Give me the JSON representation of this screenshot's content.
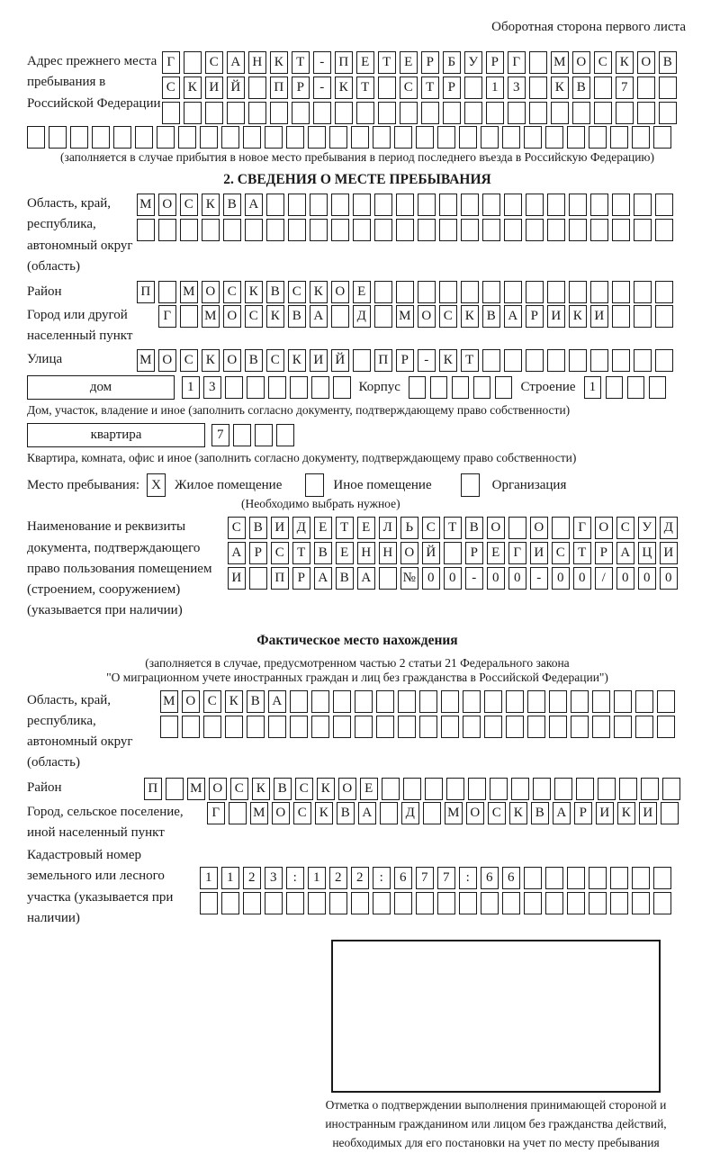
{
  "page_header": "Оборотная сторона первого листа",
  "prev_address": {
    "label": "Адрес прежнего места пребывания в Российской Федерации",
    "rows": [
      {
        "cells": 24,
        "text": "Г САНКТ-ПЕТЕРБУРГ МОСКОВ"
      },
      {
        "cells": 24,
        "text": "СКИЙ ПР-КТ СТР 13 КВ 7"
      },
      {
        "cells": 24,
        "text": ""
      }
    ],
    "full_row": {
      "cells": 30,
      "text": ""
    },
    "note": "(заполняется в случае прибытия в новое место пребывания в период последнего въезда в Российскую Федерацию)"
  },
  "section2": {
    "title": "2. СВЕДЕНИЯ О МЕСТЕ ПРЕБЫВАНИЯ",
    "oblast": {
      "label": "Область, край, республика, автономный округ (область)",
      "rows": [
        {
          "cells": 25,
          "text": "МОСКВА"
        },
        {
          "cells": 25,
          "text": ""
        }
      ]
    },
    "raion": {
      "label": "Район",
      "row": {
        "cells": 25,
        "text": "П МОСКВСКОЕ"
      }
    },
    "gorod": {
      "label": "Город или другой населенный пункт",
      "row": {
        "cells": 24,
        "text": "Г МОСКВА Д МОСКВАРИКИ"
      }
    },
    "ulitsa": {
      "label": "Улица",
      "row": {
        "cells": 25,
        "text": "МОСКОВСКИЙ ПР-КТ"
      }
    },
    "dom": {
      "box_label": "дом",
      "row": {
        "cells": 8,
        "text": "13"
      },
      "korpus_label": "Корпус",
      "korpus_row": {
        "cells": 5,
        "text": ""
      },
      "stroenie_label": "Строение",
      "stroenie_row": {
        "cells": 4,
        "text": "1"
      },
      "note": "Дом, участок, владение и иное (заполнить согласно документу, подтверждающему право собственности)"
    },
    "kvartira": {
      "box_label": "квартира",
      "row": {
        "cells": 4,
        "text": "7"
      },
      "note": "Квартира, комната, офис и иное (заполнить согласно документу, подтверждающему право собственности)"
    },
    "mesto": {
      "label": "Место пребывания:",
      "options": [
        {
          "label": "Жилое помещение",
          "checked": "X"
        },
        {
          "label": "Иное помещение",
          "checked": ""
        },
        {
          "label": "Организация",
          "checked": ""
        }
      ],
      "note": "(Необходимо выбрать нужное)"
    },
    "doc": {
      "label": "Наименование и реквизиты документа, подтверждающего право пользования помещением (строением, сооружением) (указывается при наличии)",
      "rows": [
        {
          "cells": 21,
          "text": "СВИДЕТЕЛЬСТВО О ГОСУД"
        },
        {
          "cells": 21,
          "text": "АРСТВЕННОЙ РЕГИСТРАЦИ"
        },
        {
          "cells": 21,
          "text": "И ПРАВА №00-00-00/000"
        }
      ]
    }
  },
  "fact": {
    "title": "Фактическое место нахождения",
    "note_line1": "(заполняется в случае, предусмотренном частью 2 статьи 21 Федерального закона",
    "note_line2": "\"О миграционном учете иностранных граждан и лиц без гражданства в Российской Федерации\")",
    "oblast": {
      "label": "Область, край, республика, автономный округ (область)",
      "rows": [
        {
          "cells": 24,
          "text": "МОСКВА"
        },
        {
          "cells": 24,
          "text": ""
        }
      ]
    },
    "raion": {
      "label": "Район",
      "row": {
        "cells": 25,
        "text": "П МОСКВСКОЕ"
      }
    },
    "gorod": {
      "label": "Город, сельское поселение, иной населенный пункт",
      "row": {
        "cells": 22,
        "text": "Г МОСКВА Д МОСКВАРИКИ"
      }
    },
    "kadastr": {
      "label": "Кадастровый номер земельного или лесного участка (указывается при наличии)",
      "rows": [
        {
          "cells": 22,
          "text": "1123:122:677:66"
        },
        {
          "cells": 22,
          "text": ""
        }
      ]
    },
    "stamp_caption": "Отметка о подтверждении выполнения принимающей стороной и иностранным гражданином или лицом без гражданства действий, необходимых для его постановки на учет по месту пребывания"
  },
  "colors": {
    "ink": "#1a1a1a",
    "paper": "#ffffff"
  }
}
